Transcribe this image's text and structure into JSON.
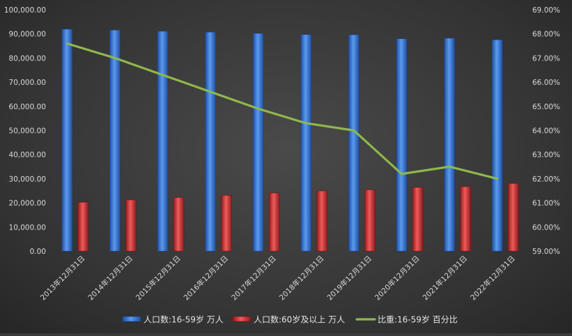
{
  "chart_data": {
    "type": "bar",
    "title": "",
    "categories": [
      "2013年12月31日",
      "2014年12月31日",
      "2015年12月31日",
      "2016年12月31日",
      "2017年12月31日",
      "2018年12月31日",
      "2019年12月31日",
      "2020年12月31日",
      "2021年12月31日",
      "2022年12月31日"
    ],
    "series": [
      {
        "name": "人口数:16-59岁 万人",
        "type": "bar",
        "axis": "left",
        "color": "#3f7fd9",
        "values": [
          91954,
          91583,
          91096,
          90747,
          90199,
          89729,
          89640,
          88000,
          88222,
          87556
        ]
      },
      {
        "name": "人口数:60岁及以上 万人",
        "type": "bar",
        "axis": "left",
        "color": "#d93a3a",
        "values": [
          20243,
          21242,
          22200,
          23086,
          24090,
          24949,
          25388,
          26402,
          26736,
          28004
        ]
      },
      {
        "name": "比重:16-59岁 百分比",
        "type": "line",
        "axis": "right",
        "color": "#8fb84a",
        "values": [
          67.6,
          67.0,
          66.3,
          65.6,
          64.9,
          64.3,
          64.0,
          62.2,
          62.5,
          62.0
        ]
      }
    ],
    "yAxisLeft": {
      "min": 0,
      "max": 100000,
      "ticks": [
        "0.00",
        "10,000.00",
        "20,000.00",
        "30,000.00",
        "40,000.00",
        "50,000.00",
        "60,000.00",
        "70,000.00",
        "80,000.00",
        "90,000.00",
        "100,000.00"
      ]
    },
    "yAxisRight": {
      "min": 59,
      "max": 69,
      "ticks": [
        "59.00%",
        "60.00%",
        "61.00%",
        "62.00%",
        "63.00%",
        "64.00%",
        "65.00%",
        "66.00%",
        "67.00%",
        "68.00%",
        "69.00%"
      ]
    },
    "grid": false,
    "legend_position": "bottom"
  }
}
